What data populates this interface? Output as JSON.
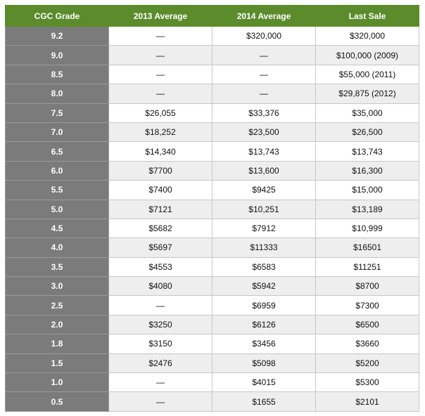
{
  "table": {
    "header": [
      "CGC Grade",
      "2013 Average",
      "2014 Average",
      "Last Sale"
    ],
    "rows": [
      [
        "9.2",
        "—",
        "$320,000",
        "$320,000"
      ],
      [
        "9.0",
        "—",
        "—",
        "$100,000 (2009)"
      ],
      [
        "8.5",
        "—",
        "—",
        "$55,000 (2011)"
      ],
      [
        "8.0",
        "—",
        "—",
        "$29,875 (2012)"
      ],
      [
        "7.5",
        "$26,055",
        "$33,376",
        "$35,000"
      ],
      [
        "7.0",
        "$18,252",
        "$23,500",
        "$26,500"
      ],
      [
        "6.5",
        "$14,340",
        "$13,743",
        "$13,743"
      ],
      [
        "6.0",
        "$7700",
        "$13,600",
        "$16,300"
      ],
      [
        "5.5",
        "$7400",
        "$9425",
        "$15,000"
      ],
      [
        "5.0",
        "$7121",
        "$10,251",
        "$13,189"
      ],
      [
        "4.5",
        "$5682",
        "$7912",
        "$10,999"
      ],
      [
        "4.0",
        "$5697",
        "$11333",
        "$16501"
      ],
      [
        "3.5",
        "$4553",
        "$6583",
        "$11251"
      ],
      [
        "3.0",
        "$4080",
        "$5942",
        "$8700"
      ],
      [
        "2.5",
        "—",
        "$6959",
        "$7300"
      ],
      [
        "2.0",
        "$3250",
        "$6126",
        "$6500"
      ],
      [
        "1.8",
        "$3150",
        "$3456",
        "$3660"
      ],
      [
        "1.5",
        "$2476",
        "$5098",
        "$5200"
      ],
      [
        "1.0",
        "—",
        "$4015",
        "$5300"
      ],
      [
        "0.5",
        "—",
        "$1655",
        "$2101"
      ]
    ]
  }
}
